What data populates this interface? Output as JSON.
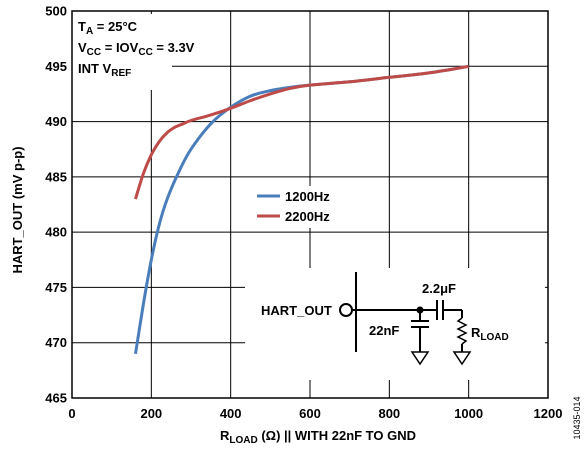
{
  "chart_data": {
    "type": "line",
    "xlabel_main": "R",
    "xlabel_sub": "LOAD",
    "xlabel_rest": " (Ω) || WITH 22nF TO GND",
    "ylabel": "HART_OUT (mV p-p)",
    "xlim": [
      0,
      1200
    ],
    "ylim": [
      465,
      500
    ],
    "xticks": [
      0,
      200,
      400,
      600,
      800,
      1000,
      1200
    ],
    "yticks": [
      465,
      470,
      475,
      480,
      485,
      490,
      495,
      500
    ],
    "grid": true,
    "legend_position": "center",
    "series": [
      {
        "name": "1200Hz",
        "color": "#4a7ebb",
        "x": [
          160,
          180,
          200,
          220,
          240,
          270,
          300,
          350,
          400,
          450,
          500,
          550,
          600,
          700,
          800,
          900,
          1000
        ],
        "y": [
          469.0,
          473.5,
          477.5,
          480.7,
          483.0,
          485.5,
          487.5,
          489.8,
          491.3,
          492.3,
          492.8,
          493.1,
          493.3,
          493.6,
          494.0,
          494.4,
          495.0
        ]
      },
      {
        "name": "2200Hz",
        "color": "#be4b48",
        "x": [
          160,
          180,
          200,
          220,
          240,
          260,
          280,
          300,
          350,
          400,
          450,
          500,
          550,
          600,
          700,
          800,
          900,
          1000
        ],
        "y": [
          483.0,
          485.3,
          487.0,
          488.2,
          489.0,
          489.5,
          489.8,
          490.1,
          490.6,
          491.2,
          491.9,
          492.5,
          493.0,
          493.3,
          493.6,
          494.0,
          494.4,
          495.0
        ]
      }
    ]
  },
  "conditions": {
    "line1_main": "T",
    "line1_sub": "A",
    "line1_rest": " = 25°C",
    "line2_main": "V",
    "line2_sub": "CC",
    "line2_rest": " = IOV",
    "line2_sub2": "CC",
    "line2_rest2": " = 3.3V",
    "line3_main": "INT V",
    "line3_sub": "REF"
  },
  "circuit": {
    "node_label": "HART_OUT",
    "cap_series": "2.2μF",
    "cap_shunt": "22nF",
    "load_main": "R",
    "load_sub": "LOAD"
  },
  "figure_id": "10435-014"
}
